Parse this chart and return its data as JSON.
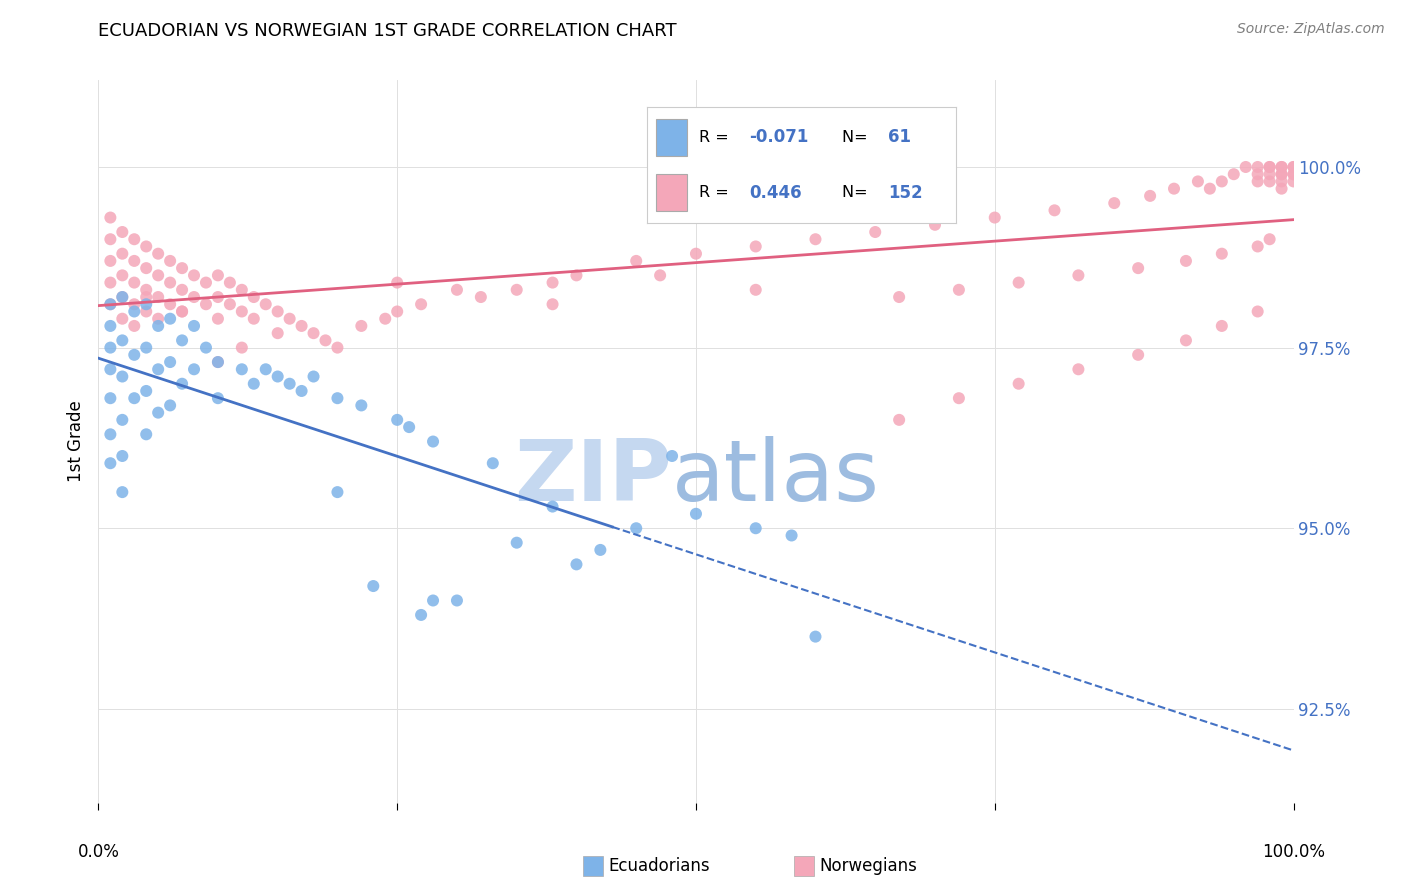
{
  "title": "ECUADORIAN VS NORWEGIAN 1ST GRADE CORRELATION CHART",
  "source": "Source: ZipAtlas.com",
  "ylabel": "1st Grade",
  "yticks": [
    92.5,
    95.0,
    97.5,
    100.0
  ],
  "ytick_labels": [
    "92.5%",
    "95.0%",
    "97.5%",
    "100.0%"
  ],
  "xrange": [
    0.0,
    1.0
  ],
  "yrange": [
    91.2,
    101.2
  ],
  "legend_blue_label": "Ecuadorians",
  "legend_pink_label": "Norwegians",
  "blue_color": "#7EB3E8",
  "pink_color": "#F4A7B9",
  "blue_line_color": "#4472C4",
  "pink_line_color": "#E06080",
  "blue_scatter_x": [
    0.01,
    0.01,
    0.01,
    0.01,
    0.01,
    0.01,
    0.01,
    0.02,
    0.02,
    0.02,
    0.02,
    0.02,
    0.02,
    0.03,
    0.03,
    0.03,
    0.04,
    0.04,
    0.04,
    0.04,
    0.05,
    0.05,
    0.05,
    0.06,
    0.06,
    0.06,
    0.07,
    0.07,
    0.08,
    0.08,
    0.09,
    0.1,
    0.1,
    0.12,
    0.13,
    0.14,
    0.15,
    0.16,
    0.17,
    0.18,
    0.2,
    0.2,
    0.22,
    0.23,
    0.25,
    0.26,
    0.27,
    0.28,
    0.28,
    0.3,
    0.33,
    0.35,
    0.38,
    0.4,
    0.42,
    0.45,
    0.48,
    0.5,
    0.55,
    0.58,
    0.6
  ],
  "blue_scatter_y": [
    97.5,
    97.8,
    98.1,
    97.2,
    96.8,
    96.3,
    95.9,
    98.2,
    97.6,
    97.1,
    96.5,
    96.0,
    95.5,
    98.0,
    97.4,
    96.8,
    98.1,
    97.5,
    96.9,
    96.3,
    97.8,
    97.2,
    96.6,
    97.9,
    97.3,
    96.7,
    97.6,
    97.0,
    97.8,
    97.2,
    97.5,
    97.3,
    96.8,
    97.2,
    97.0,
    97.2,
    97.1,
    97.0,
    96.9,
    97.1,
    96.8,
    95.5,
    96.7,
    94.2,
    96.5,
    96.4,
    93.8,
    96.2,
    94.0,
    94.0,
    95.9,
    94.8,
    95.3,
    94.5,
    94.7,
    95.0,
    96.0,
    95.2,
    95.0,
    94.9,
    93.5
  ],
  "pink_scatter_x": [
    0.01,
    0.01,
    0.01,
    0.01,
    0.01,
    0.02,
    0.02,
    0.02,
    0.02,
    0.02,
    0.03,
    0.03,
    0.03,
    0.03,
    0.03,
    0.04,
    0.04,
    0.04,
    0.04,
    0.05,
    0.05,
    0.05,
    0.05,
    0.06,
    0.06,
    0.06,
    0.07,
    0.07,
    0.07,
    0.08,
    0.08,
    0.09,
    0.09,
    0.1,
    0.1,
    0.1,
    0.11,
    0.11,
    0.12,
    0.12,
    0.13,
    0.13,
    0.14,
    0.15,
    0.15,
    0.16,
    0.17,
    0.18,
    0.19,
    0.2,
    0.22,
    0.24,
    0.25,
    0.27,
    0.3,
    0.32,
    0.35,
    0.38,
    0.4,
    0.45,
    0.5,
    0.55,
    0.6,
    0.65,
    0.67,
    0.7,
    0.72,
    0.75,
    0.77,
    0.8,
    0.82,
    0.85,
    0.87,
    0.88,
    0.9,
    0.91,
    0.92,
    0.93,
    0.94,
    0.94,
    0.95,
    0.96,
    0.97,
    0.97,
    0.97,
    0.97,
    0.98,
    0.98,
    0.98,
    0.98,
    0.99,
    0.99,
    0.99,
    0.99,
    0.99,
    0.99,
    1.0,
    1.0,
    1.0,
    1.0,
    1.0,
    0.47,
    0.38,
    0.55,
    0.25,
    0.67,
    0.72,
    0.77,
    0.82,
    0.87,
    0.91,
    0.94,
    0.97,
    0.98,
    0.04,
    0.07,
    0.1,
    0.12
  ],
  "pink_scatter_y": [
    99.3,
    99.0,
    98.7,
    98.4,
    98.1,
    99.1,
    98.8,
    98.5,
    98.2,
    97.9,
    99.0,
    98.7,
    98.4,
    98.1,
    97.8,
    98.9,
    98.6,
    98.3,
    98.0,
    98.8,
    98.5,
    98.2,
    97.9,
    98.7,
    98.4,
    98.1,
    98.6,
    98.3,
    98.0,
    98.5,
    98.2,
    98.4,
    98.1,
    98.5,
    98.2,
    97.9,
    98.4,
    98.1,
    98.3,
    98.0,
    98.2,
    97.9,
    98.1,
    98.0,
    97.7,
    97.9,
    97.8,
    97.7,
    97.6,
    97.5,
    97.8,
    97.9,
    98.0,
    98.1,
    98.3,
    98.2,
    98.3,
    98.4,
    98.5,
    98.7,
    98.8,
    98.9,
    99.0,
    99.1,
    96.5,
    99.2,
    96.8,
    99.3,
    97.0,
    99.4,
    97.2,
    99.5,
    97.4,
    99.6,
    99.7,
    97.6,
    99.8,
    99.7,
    99.8,
    97.8,
    99.9,
    100.0,
    99.8,
    99.9,
    100.0,
    98.0,
    99.9,
    100.0,
    99.8,
    100.0,
    99.9,
    100.0,
    99.8,
    99.9,
    100.0,
    99.7,
    99.9,
    100.0,
    99.8,
    99.9,
    100.0,
    98.5,
    98.1,
    98.3,
    98.4,
    98.2,
    98.3,
    98.4,
    98.5,
    98.6,
    98.7,
    98.8,
    98.9,
    99.0,
    98.2,
    98.0,
    97.3,
    97.5
  ]
}
